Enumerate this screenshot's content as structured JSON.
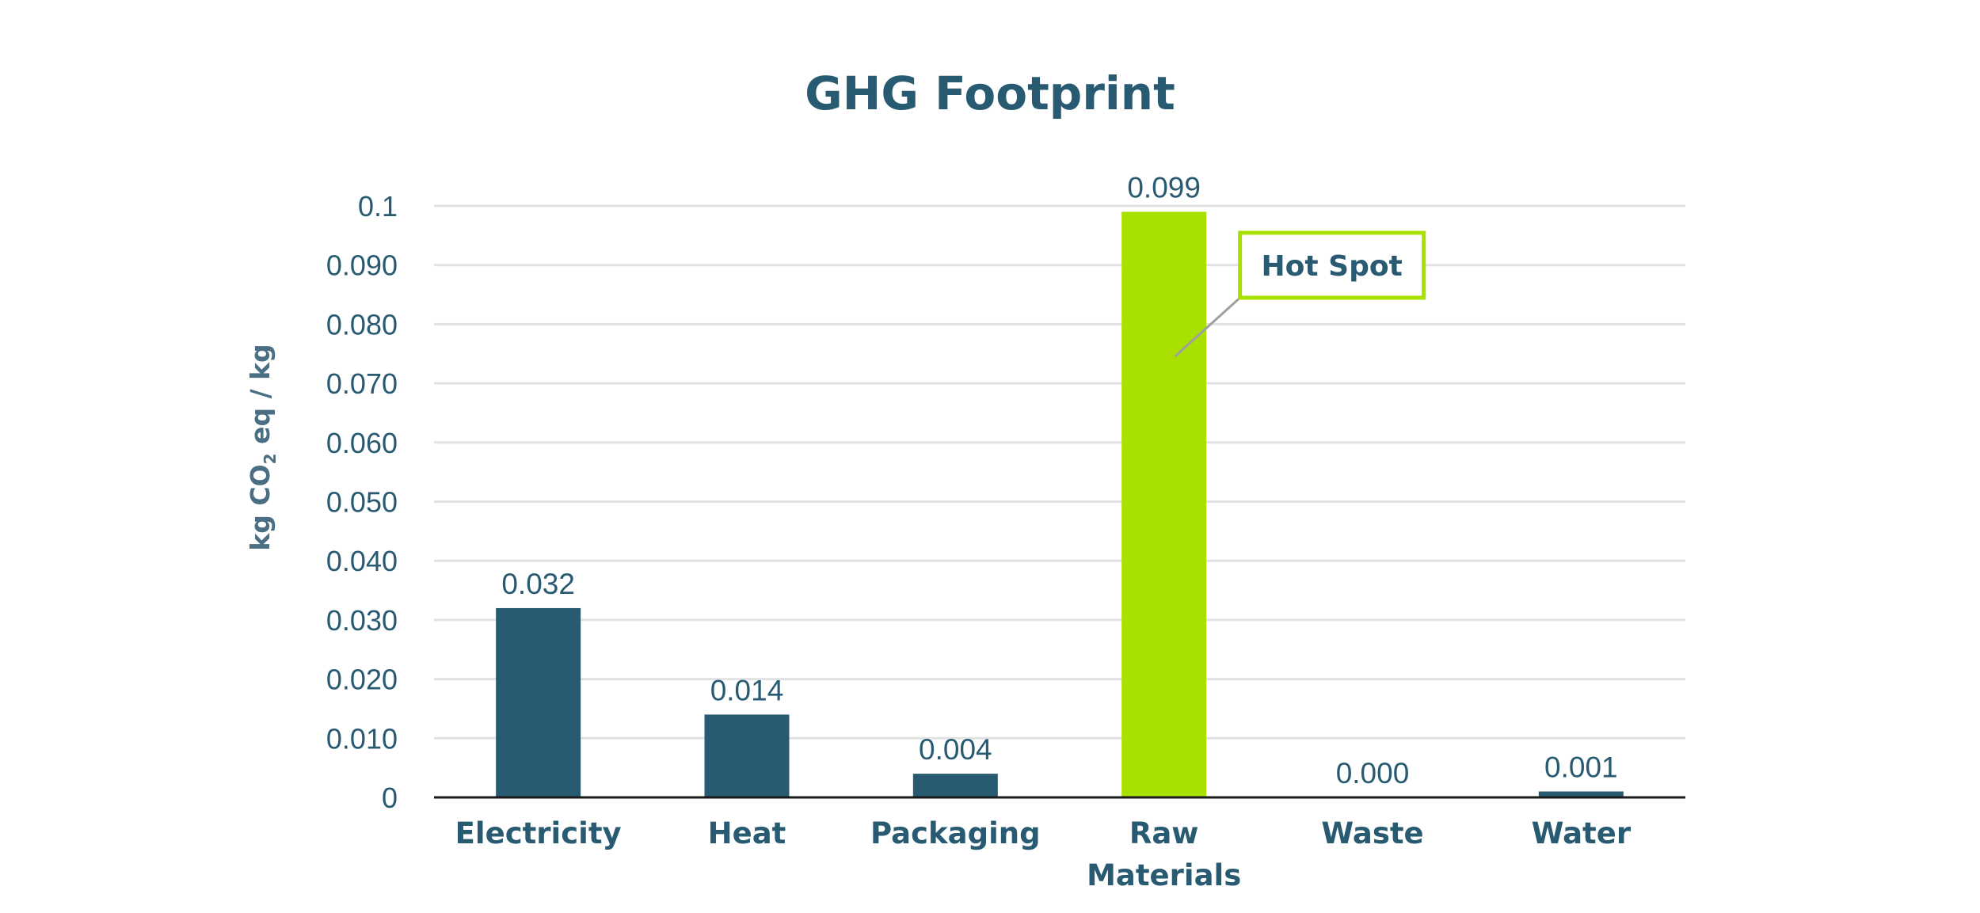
{
  "chart_data": {
    "type": "bar",
    "title": "GHG Footprint",
    "ylabel": {
      "pre": "kg CO",
      "sub": "2",
      "post": " eq / kg"
    },
    "xlabel": "",
    "ylim": [
      0,
      0.1
    ],
    "grid": true,
    "y_ticks": [
      {
        "value": 0,
        "label": "0"
      },
      {
        "value": 0.01,
        "label": "0.010"
      },
      {
        "value": 0.02,
        "label": "0.020"
      },
      {
        "value": 0.03,
        "label": "0.030"
      },
      {
        "value": 0.04,
        "label": "0.040"
      },
      {
        "value": 0.05,
        "label": "0.050"
      },
      {
        "value": 0.06,
        "label": "0.060"
      },
      {
        "value": 0.07,
        "label": "0.070"
      },
      {
        "value": 0.08,
        "label": "0.080"
      },
      {
        "value": 0.09,
        "label": "0.090"
      },
      {
        "value": 0.1,
        "label": "0.1"
      }
    ],
    "categories": [
      {
        "label": [
          "Electricity"
        ],
        "value": 0.032,
        "data_label": "0.032",
        "color": "#285a72"
      },
      {
        "label": [
          "Heat"
        ],
        "value": 0.014,
        "data_label": "0.014",
        "color": "#285a72"
      },
      {
        "label": [
          "Packaging"
        ],
        "value": 0.004,
        "data_label": "0.004",
        "color": "#285a72"
      },
      {
        "label": [
          "Raw",
          "Materials"
        ],
        "value": 0.099,
        "data_label": "0.099",
        "color": "#a8e000"
      },
      {
        "label": [
          "Waste"
        ],
        "value": 0.0,
        "data_label": "0.000",
        "color": "#285a72"
      },
      {
        "label": [
          "Water"
        ],
        "value": 0.001,
        "data_label": "0.001",
        "color": "#285a72"
      }
    ],
    "annotation": {
      "text": "Hot Spot",
      "target_category": "Raw Materials",
      "border_color": "#a8e000"
    },
    "colors": {
      "text": "#285a72",
      "bar": "#285a72",
      "highlight": "#a8e000",
      "grid": "#e2e2e2",
      "axis": "#1a1a1a"
    }
  }
}
